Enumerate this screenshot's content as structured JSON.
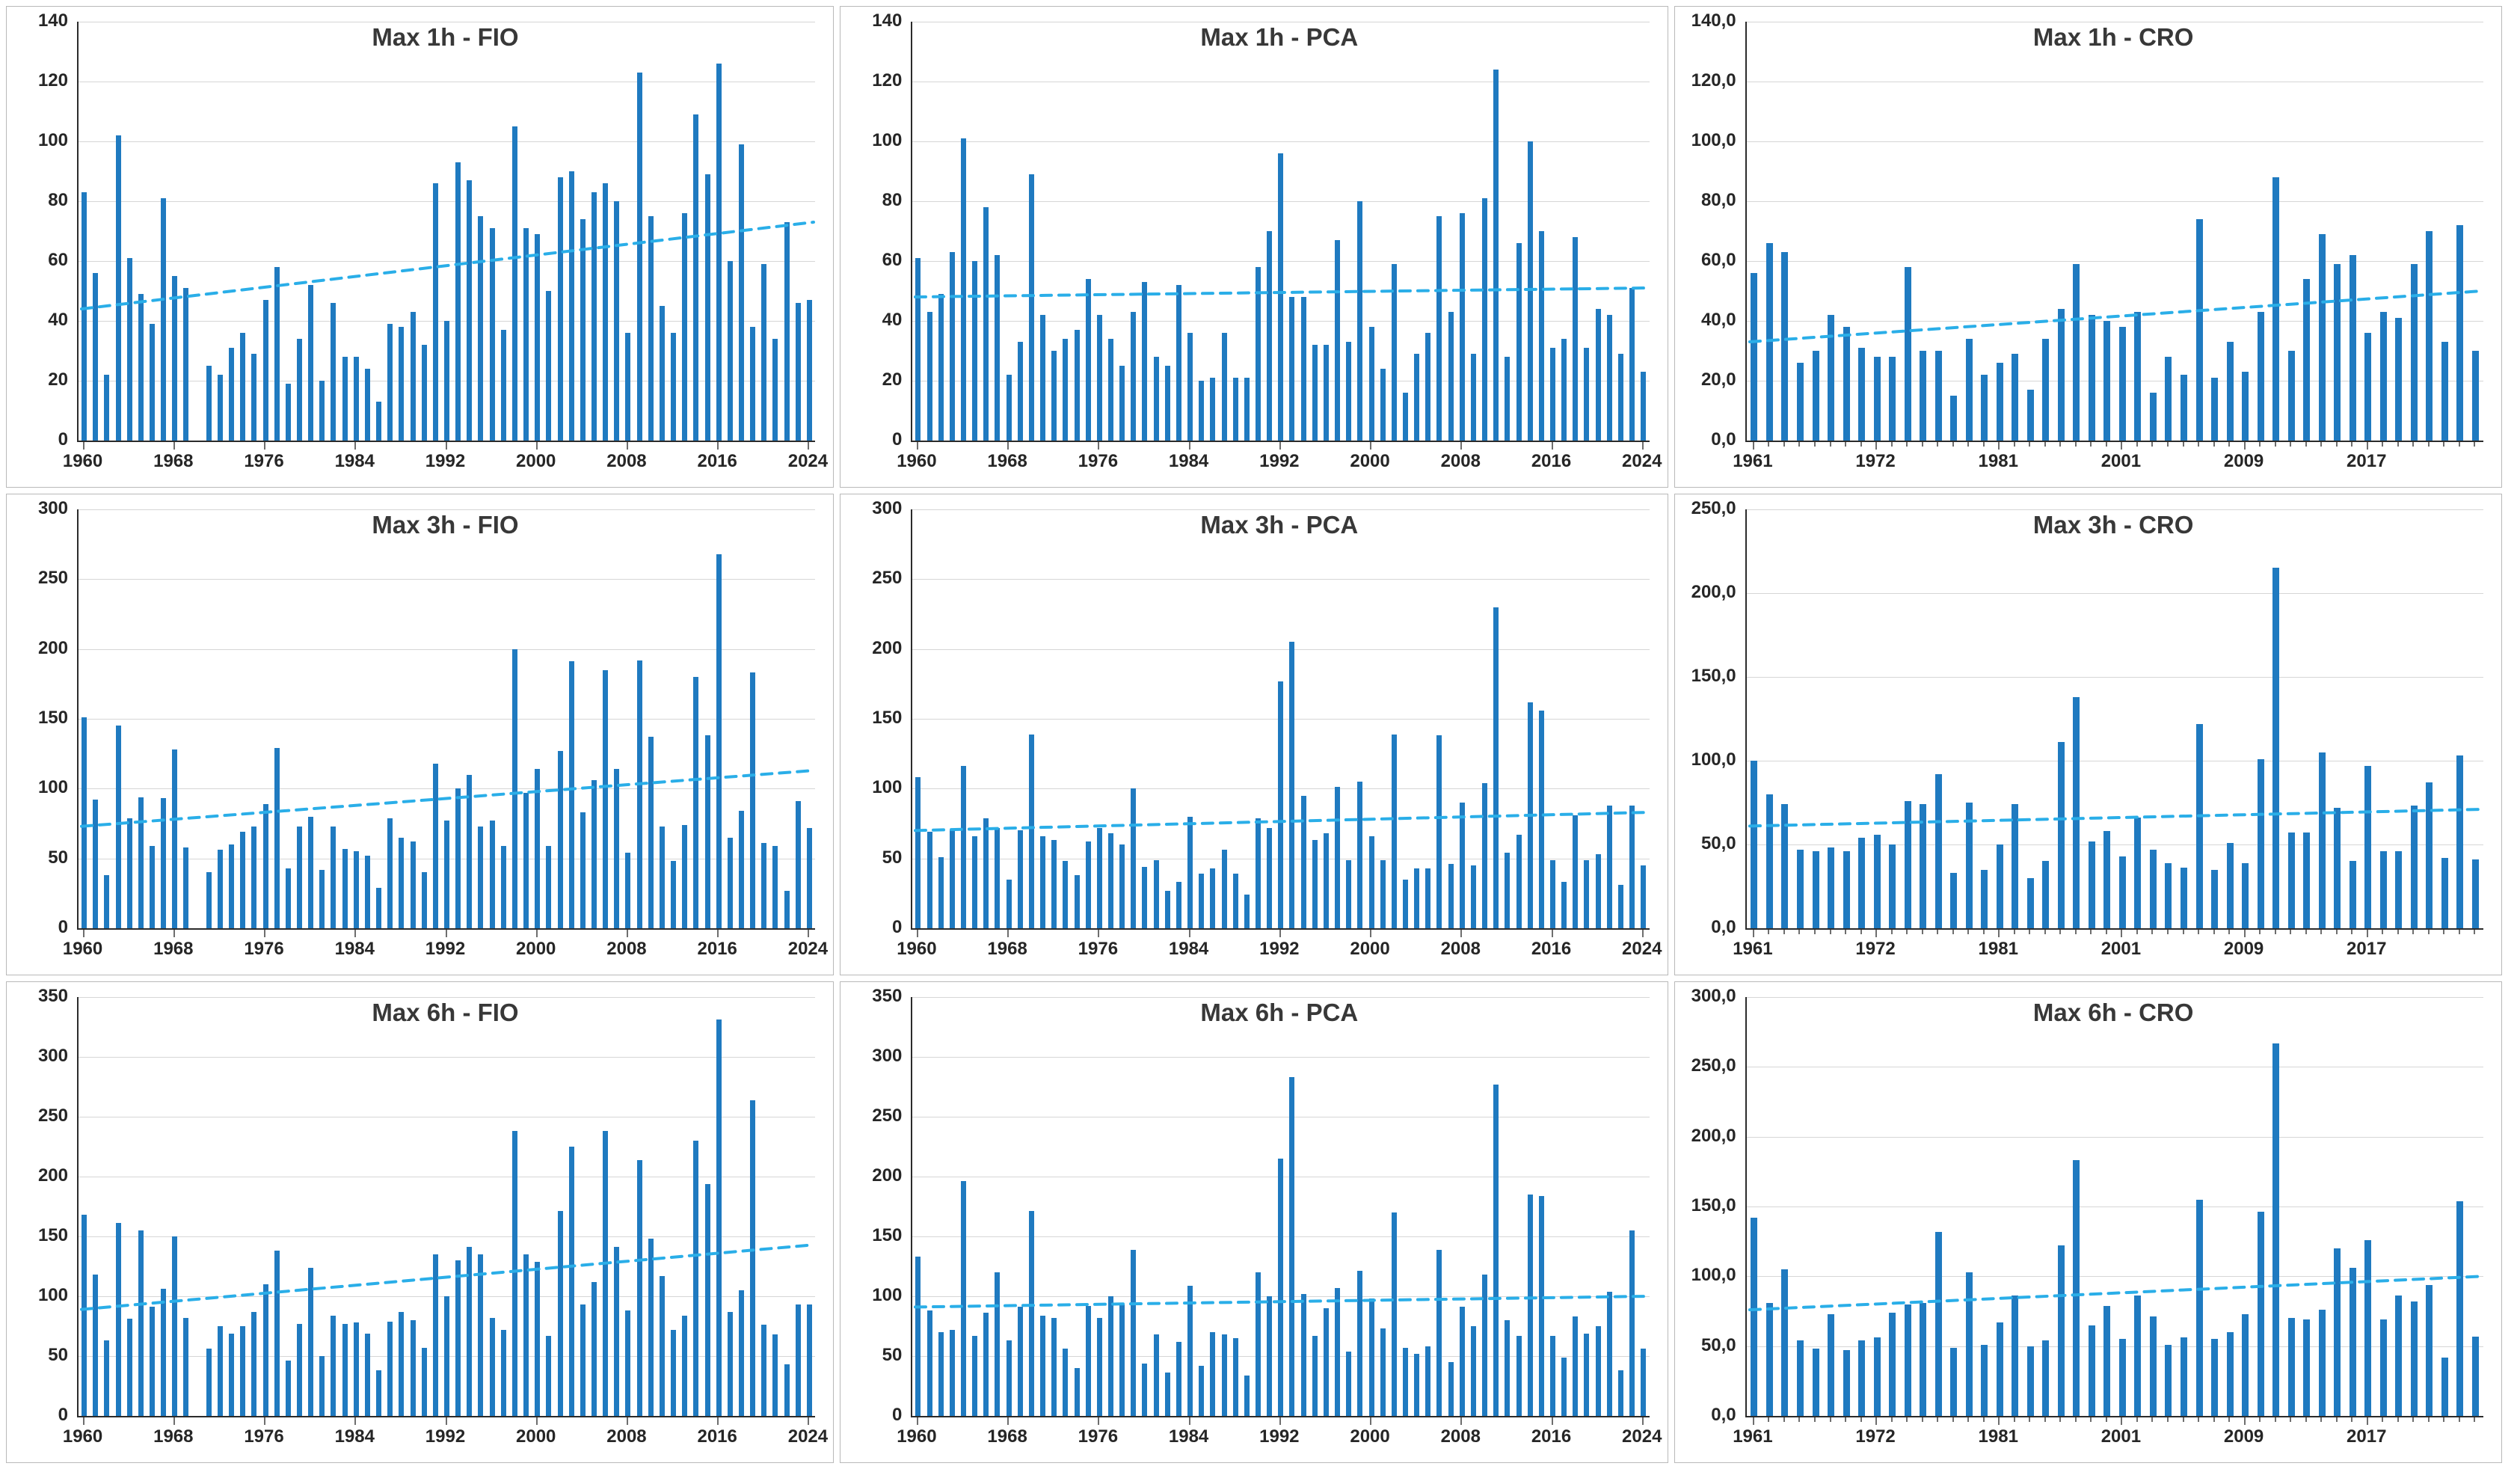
{
  "style": {
    "bar_color": "#1f7ac0",
    "trend_color": "#2aaee8",
    "grid_color": "#d6d6d6",
    "axis_color": "#2b2b2b",
    "label_color": "#262626",
    "title_color": "#383838",
    "panel_border": "#b9b9b9",
    "background": "#ffffff"
  },
  "chart_data": [
    {
      "type": "bar",
      "title": "Max 1h - FIO",
      "ylim": [
        0,
        140
      ],
      "y_step": 20,
      "y_tick_labels": [
        "0",
        "20",
        "40",
        "60",
        "80",
        "100",
        "120",
        "140"
      ],
      "x_tick_labels": [
        "1960",
        "1968",
        "1976",
        "1984",
        "1992",
        "2000",
        "2008",
        "2016",
        "2024"
      ],
      "x_tick_indices": [
        0,
        8,
        16,
        24,
        32,
        40,
        48,
        56,
        64
      ],
      "n_categories": 65,
      "minor_ticks": false,
      "values": [
        83,
        56,
        22,
        102,
        61,
        49,
        39,
        81,
        55,
        51,
        null,
        25,
        22,
        31,
        36,
        29,
        47,
        58,
        19,
        34,
        52,
        20,
        46,
        28,
        28,
        24,
        13,
        39,
        38,
        43,
        32,
        86,
        40,
        93,
        87,
        75,
        71,
        37,
        105,
        71,
        69,
        50,
        88,
        90,
        74,
        83,
        86,
        80,
        36,
        123,
        75,
        45,
        36,
        76,
        109,
        89,
        126,
        60,
        99,
        38,
        59,
        34,
        73,
        46,
        47
      ],
      "trendline": {
        "start": 44,
        "end": 73
      }
    },
    {
      "type": "bar",
      "title": "Max 1h - PCA",
      "ylim": [
        0,
        140
      ],
      "y_step": 20,
      "y_tick_labels": [
        "0",
        "20",
        "40",
        "60",
        "80",
        "100",
        "120",
        "140"
      ],
      "x_tick_labels": [
        "1960",
        "1968",
        "1976",
        "1984",
        "1992",
        "2000",
        "2008",
        "2016",
        "2024"
      ],
      "x_tick_indices": [
        0,
        8,
        16,
        24,
        32,
        40,
        48,
        56,
        64
      ],
      "n_categories": 65,
      "minor_ticks": false,
      "values": [
        61,
        43,
        49,
        63,
        101,
        60,
        78,
        62,
        22,
        33,
        89,
        42,
        30,
        34,
        37,
        54,
        42,
        34,
        25,
        43,
        53,
        28,
        25,
        52,
        36,
        20,
        21,
        36,
        21,
        21,
        58,
        70,
        96,
        48,
        48,
        32,
        32,
        67,
        33,
        80,
        38,
        24,
        59,
        16,
        29,
        36,
        75,
        43,
        76,
        29,
        81,
        124,
        28,
        66,
        100,
        70,
        31,
        34,
        68,
        31,
        44,
        42,
        29,
        51,
        23
      ],
      "trendline": {
        "start": 48,
        "end": 51
      }
    },
    {
      "type": "bar",
      "title": "Max 1h - CRO",
      "ylim": [
        0,
        140
      ],
      "y_step": 20,
      "y_tick_labels": [
        "0,0",
        "20,0",
        "40,0",
        "60,0",
        "80,0",
        "100,0",
        "120,0",
        "140,0"
      ],
      "x_tick_labels": [
        "1961",
        "1972",
        "1981",
        "2001",
        "2009",
        "2017"
      ],
      "x_tick_indices": [
        0,
        8,
        16,
        24,
        32,
        40
      ],
      "n_categories": 48,
      "minor_ticks": true,
      "values": [
        56,
        66,
        63,
        26,
        30,
        42,
        38,
        31,
        28,
        28,
        58,
        30,
        30,
        15,
        34,
        22,
        26,
        29,
        17,
        34,
        44,
        59,
        42,
        40,
        38,
        43,
        16,
        28,
        22,
        74,
        21,
        33,
        23,
        43,
        88,
        30,
        54,
        69,
        59,
        62,
        36,
        43,
        41,
        59,
        70,
        33,
        72,
        30
      ],
      "trendline": {
        "start": 33,
        "end": 50
      }
    },
    {
      "type": "bar",
      "title": "Max 3h - FIO",
      "ylim": [
        0,
        300
      ],
      "y_step": 50,
      "y_tick_labels": [
        "0",
        "50",
        "100",
        "150",
        "200",
        "250",
        "300"
      ],
      "x_tick_labels": [
        "1960",
        "1968",
        "1976",
        "1984",
        "1992",
        "2000",
        "2008",
        "2016",
        "2024"
      ],
      "x_tick_indices": [
        0,
        8,
        16,
        24,
        32,
        40,
        48,
        56,
        64
      ],
      "n_categories": 65,
      "minor_ticks": false,
      "values": [
        151,
        92,
        38,
        145,
        79,
        94,
        59,
        93,
        128,
        58,
        null,
        40,
        56,
        60,
        69,
        73,
        89,
        129,
        43,
        73,
        80,
        42,
        73,
        57,
        55,
        52,
        29,
        79,
        65,
        62,
        40,
        118,
        77,
        100,
        110,
        73,
        77,
        59,
        200,
        97,
        114,
        59,
        127,
        191,
        83,
        106,
        185,
        114,
        54,
        192,
        137,
        73,
        48,
        74,
        180,
        138,
        268,
        65,
        84,
        183,
        61,
        59,
        27,
        91,
        72
      ],
      "trendline": {
        "start": 73,
        "end": 113
      }
    },
    {
      "type": "bar",
      "title": "Max 3h - PCA",
      "ylim": [
        0,
        300
      ],
      "y_step": 50,
      "y_tick_labels": [
        "0",
        "50",
        "100",
        "150",
        "200",
        "250",
        "300"
      ],
      "x_tick_labels": [
        "1960",
        "1968",
        "1976",
        "1984",
        "1992",
        "2000",
        "2008",
        "2016",
        "2024"
      ],
      "x_tick_indices": [
        0,
        8,
        16,
        24,
        32,
        40,
        48,
        56,
        64
      ],
      "n_categories": 65,
      "minor_ticks": false,
      "values": [
        108,
        69,
        51,
        70,
        116,
        66,
        79,
        72,
        35,
        70,
        139,
        66,
        63,
        48,
        38,
        62,
        72,
        68,
        60,
        100,
        44,
        49,
        27,
        33,
        80,
        39,
        43,
        56,
        39,
        24,
        79,
        72,
        177,
        205,
        95,
        63,
        68,
        101,
        49,
        105,
        66,
        49,
        139,
        35,
        43,
        43,
        138,
        46,
        90,
        45,
        104,
        230,
        54,
        67,
        162,
        156,
        49,
        33,
        81,
        49,
        53,
        88,
        31,
        88,
        45
      ],
      "trendline": {
        "start": 70,
        "end": 83
      }
    },
    {
      "type": "bar",
      "title": "Max 3h - CRO",
      "ylim": [
        0,
        250
      ],
      "y_step": 50,
      "y_tick_labels": [
        "0,0",
        "50,0",
        "100,0",
        "150,0",
        "200,0",
        "250,0"
      ],
      "x_tick_labels": [
        "1961",
        "1972",
        "1981",
        "2001",
        "2009",
        "2017"
      ],
      "x_tick_indices": [
        0,
        8,
        16,
        24,
        32,
        40
      ],
      "n_categories": 48,
      "minor_ticks": true,
      "values": [
        100,
        80,
        74,
        47,
        46,
        48,
        46,
        54,
        56,
        50,
        76,
        74,
        92,
        33,
        75,
        35,
        50,
        74,
        30,
        40,
        111,
        138,
        52,
        58,
        43,
        66,
        47,
        39,
        36,
        122,
        35,
        51,
        39,
        101,
        215,
        57,
        57,
        105,
        72,
        40,
        97,
        46,
        46,
        73,
        87,
        42,
        103,
        41
      ],
      "trendline": {
        "start": 61,
        "end": 71
      }
    },
    {
      "type": "bar",
      "title": "Max 6h - FIO",
      "ylim": [
        0,
        350
      ],
      "y_step": 50,
      "y_tick_labels": [
        "0",
        "50",
        "100",
        "150",
        "200",
        "250",
        "300",
        "350"
      ],
      "x_tick_labels": [
        "1960",
        "1968",
        "1976",
        "1984",
        "1992",
        "2000",
        "2008",
        "2016",
        "2024"
      ],
      "x_tick_indices": [
        0,
        8,
        16,
        24,
        32,
        40,
        48,
        56,
        64
      ],
      "n_categories": 65,
      "minor_ticks": false,
      "values": [
        168,
        118,
        63,
        161,
        81,
        155,
        91,
        106,
        150,
        82,
        null,
        56,
        75,
        69,
        75,
        87,
        110,
        138,
        46,
        77,
        124,
        50,
        84,
        77,
        78,
        69,
        38,
        79,
        87,
        80,
        57,
        135,
        100,
        130,
        141,
        135,
        82,
        72,
        238,
        135,
        129,
        67,
        171,
        225,
        93,
        112,
        238,
        141,
        88,
        214,
        148,
        117,
        72,
        84,
        230,
        194,
        331,
        87,
        105,
        264,
        76,
        68,
        43,
        93,
        93
      ],
      "trendline": {
        "start": 89,
        "end": 143
      }
    },
    {
      "type": "bar",
      "title": "Max 6h - PCA",
      "ylim": [
        0,
        350
      ],
      "y_step": 50,
      "y_tick_labels": [
        "0",
        "50",
        "100",
        "150",
        "200",
        "250",
        "300",
        "350"
      ],
      "x_tick_labels": [
        "1960",
        "1968",
        "1976",
        "1984",
        "1992",
        "2000",
        "2008",
        "2016",
        "2024"
      ],
      "x_tick_indices": [
        0,
        8,
        16,
        24,
        32,
        40,
        48,
        56,
        64
      ],
      "n_categories": 65,
      "minor_ticks": false,
      "values": [
        133,
        88,
        70,
        72,
        196,
        67,
        86,
        120,
        63,
        91,
        171,
        84,
        82,
        56,
        40,
        92,
        82,
        100,
        93,
        139,
        44,
        68,
        36,
        62,
        109,
        42,
        70,
        68,
        65,
        34,
        120,
        100,
        215,
        283,
        102,
        67,
        90,
        107,
        54,
        121,
        98,
        73,
        170,
        57,
        52,
        58,
        139,
        45,
        91,
        75,
        118,
        277,
        80,
        67,
        185,
        184,
        67,
        49,
        83,
        69,
        75,
        104,
        38,
        155,
        56
      ],
      "trendline": {
        "start": 91,
        "end": 100
      }
    },
    {
      "type": "bar",
      "title": "Max 6h - CRO",
      "ylim": [
        0,
        300
      ],
      "y_step": 50,
      "y_tick_labels": [
        "0,0",
        "50,0",
        "100,0",
        "150,0",
        "200,0",
        "250,0",
        "300,0"
      ],
      "x_tick_labels": [
        "1961",
        "1972",
        "1981",
        "2001",
        "2009",
        "2017"
      ],
      "x_tick_indices": [
        0,
        8,
        16,
        24,
        32,
        40
      ],
      "n_categories": 48,
      "minor_ticks": true,
      "values": [
        142,
        81,
        105,
        54,
        48,
        73,
        47,
        54,
        56,
        74,
        80,
        81,
        132,
        49,
        103,
        51,
        67,
        86,
        50,
        54,
        122,
        183,
        65,
        79,
        55,
        86,
        71,
        51,
        56,
        155,
        55,
        60,
        73,
        146,
        267,
        70,
        69,
        76,
        120,
        106,
        126,
        69,
        86,
        82,
        94,
        42,
        154,
        57
      ],
      "trendline": {
        "start": 76,
        "end": 100
      }
    }
  ]
}
